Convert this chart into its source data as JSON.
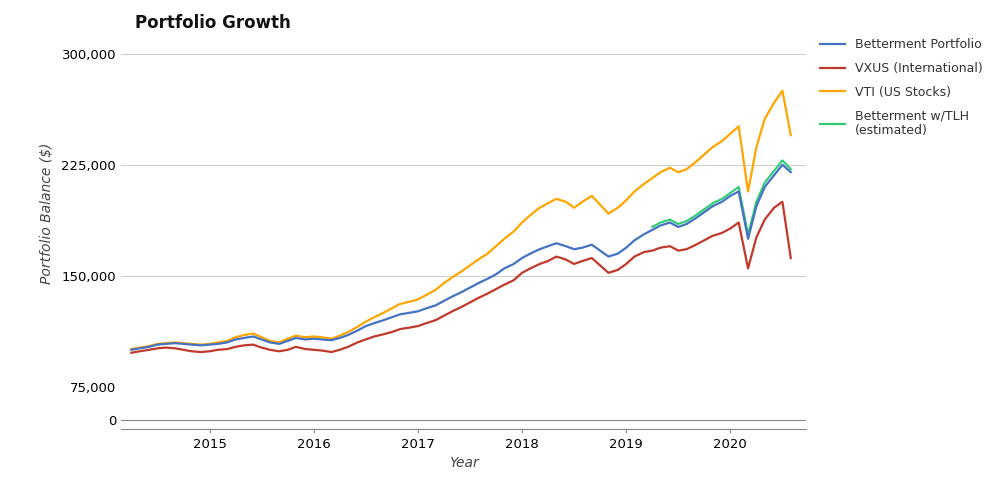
{
  "title": "Portfolio Growth",
  "xlabel": "Year",
  "ylabel": "Portfolio Balance ($)",
  "title_fontsize": 12,
  "label_fontsize": 10,
  "tick_fontsize": 9.5,
  "background_color": "#ffffff",
  "line_colors": {
    "betterment": "#4472C4",
    "vxus": "#C0392B",
    "vti": "#FFA500",
    "betterment_tlh": "#2ECC71"
  },
  "line_labels": {
    "betterment": "Betterment Portfolio",
    "vxus": "VXUS (International)",
    "vti": "VTI (US Stocks)",
    "betterment_tlh": "Betterment w/TLH\n(estimated)"
  },
  "ylim_main": [
    75000,
    310000
  ],
  "yticks_main": [
    75000,
    150000,
    225000,
    300000
  ],
  "ytick_labels_main": [
    "75,000",
    "150,000",
    "225,000",
    "300,000"
  ],
  "ylim_zero": [
    -2000,
    8000
  ],
  "yticks_zero": [
    0
  ],
  "ytick_labels_zero": [
    "0"
  ],
  "xticks": [
    2015,
    2016,
    2017,
    2018,
    2019,
    2020
  ],
  "data_x": [
    2014.25,
    2014.33,
    2014.42,
    2014.5,
    2014.58,
    2014.67,
    2014.75,
    2014.83,
    2014.92,
    2015.0,
    2015.08,
    2015.17,
    2015.25,
    2015.33,
    2015.42,
    2015.5,
    2015.58,
    2015.67,
    2015.75,
    2015.83,
    2015.92,
    2016.0,
    2016.08,
    2016.17,
    2016.25,
    2016.33,
    2016.42,
    2016.5,
    2016.58,
    2016.67,
    2016.75,
    2016.83,
    2016.92,
    2017.0,
    2017.08,
    2017.17,
    2017.25,
    2017.33,
    2017.42,
    2017.5,
    2017.58,
    2017.67,
    2017.75,
    2017.83,
    2017.92,
    2018.0,
    2018.08,
    2018.17,
    2018.25,
    2018.33,
    2018.42,
    2018.5,
    2018.58,
    2018.67,
    2018.75,
    2018.83,
    2018.92,
    2019.0,
    2019.08,
    2019.17,
    2019.25,
    2019.33,
    2019.42,
    2019.5,
    2019.58,
    2019.67,
    2019.75,
    2019.83,
    2019.92,
    2020.0,
    2020.08,
    2020.17,
    2020.25,
    2020.33,
    2020.42,
    2020.5,
    2020.58
  ],
  "betterment": [
    100000,
    101000,
    102000,
    103500,
    104000,
    104500,
    104000,
    103500,
    103000,
    103500,
    104000,
    105000,
    107000,
    108000,
    109000,
    107000,
    105000,
    104000,
    106000,
    108000,
    107000,
    107500,
    107000,
    106500,
    108000,
    110000,
    113000,
    116000,
    118000,
    120000,
    122000,
    124000,
    125000,
    126000,
    128000,
    130000,
    133000,
    136000,
    139000,
    142000,
    145000,
    148000,
    151000,
    155000,
    158000,
    162000,
    165000,
    168000,
    170000,
    172000,
    170000,
    168000,
    169000,
    171000,
    167000,
    163000,
    165000,
    169000,
    174000,
    178000,
    181000,
    184000,
    186000,
    183000,
    185000,
    189000,
    193000,
    197000,
    200000,
    204000,
    207000,
    175000,
    197000,
    210000,
    218000,
    225000,
    220000
  ],
  "vxus": [
    98000,
    99000,
    100000,
    101000,
    101500,
    101000,
    100000,
    99000,
    98500,
    99000,
    100000,
    100500,
    102000,
    103000,
    103500,
    101500,
    100000,
    99000,
    100000,
    102000,
    100500,
    100000,
    99500,
    98500,
    100000,
    102000,
    105000,
    107000,
    109000,
    110500,
    112000,
    114000,
    115000,
    116000,
    118000,
    120000,
    123000,
    126000,
    129000,
    132000,
    135000,
    138000,
    141000,
    144000,
    147000,
    152000,
    155000,
    158000,
    160000,
    163000,
    161000,
    158000,
    160000,
    162000,
    157000,
    152000,
    154000,
    158000,
    163000,
    166000,
    167000,
    169000,
    170000,
    167000,
    168000,
    171000,
    174000,
    177000,
    179000,
    182000,
    186000,
    155000,
    176000,
    188000,
    196000,
    200000,
    162000
  ],
  "vti": [
    100500,
    101500,
    102500,
    104000,
    104500,
    105000,
    104500,
    104000,
    103500,
    104000,
    105000,
    106000,
    108500,
    110000,
    111000,
    108500,
    106000,
    105000,
    107500,
    109500,
    108500,
    109000,
    108500,
    107500,
    109500,
    112000,
    115500,
    119000,
    122000,
    125000,
    128000,
    131000,
    132500,
    134000,
    137000,
    140500,
    145000,
    149000,
    153000,
    157000,
    161000,
    165000,
    170000,
    175000,
    180000,
    186000,
    191000,
    196000,
    199000,
    202000,
    200000,
    196000,
    200000,
    204000,
    198000,
    192000,
    196000,
    201000,
    207000,
    212000,
    216000,
    220000,
    223000,
    220000,
    222000,
    227000,
    232000,
    237000,
    241000,
    246000,
    251000,
    207000,
    237000,
    256000,
    267000,
    275000,
    245000
  ],
  "betterment_tlh": [
    null,
    null,
    null,
    null,
    null,
    null,
    null,
    null,
    null,
    null,
    null,
    null,
    null,
    null,
    null,
    null,
    null,
    null,
    null,
    null,
    null,
    null,
    null,
    null,
    null,
    null,
    null,
    null,
    null,
    null,
    null,
    null,
    null,
    null,
    null,
    null,
    null,
    null,
    null,
    null,
    null,
    null,
    null,
    null,
    null,
    null,
    null,
    null,
    null,
    null,
    null,
    null,
    null,
    null,
    null,
    null,
    null,
    null,
    null,
    null,
    183000,
    186000,
    188000,
    185000,
    187000,
    191000,
    195000,
    199000,
    202000,
    206000,
    210000,
    178000,
    200000,
    213000,
    221000,
    228000,
    222000
  ]
}
